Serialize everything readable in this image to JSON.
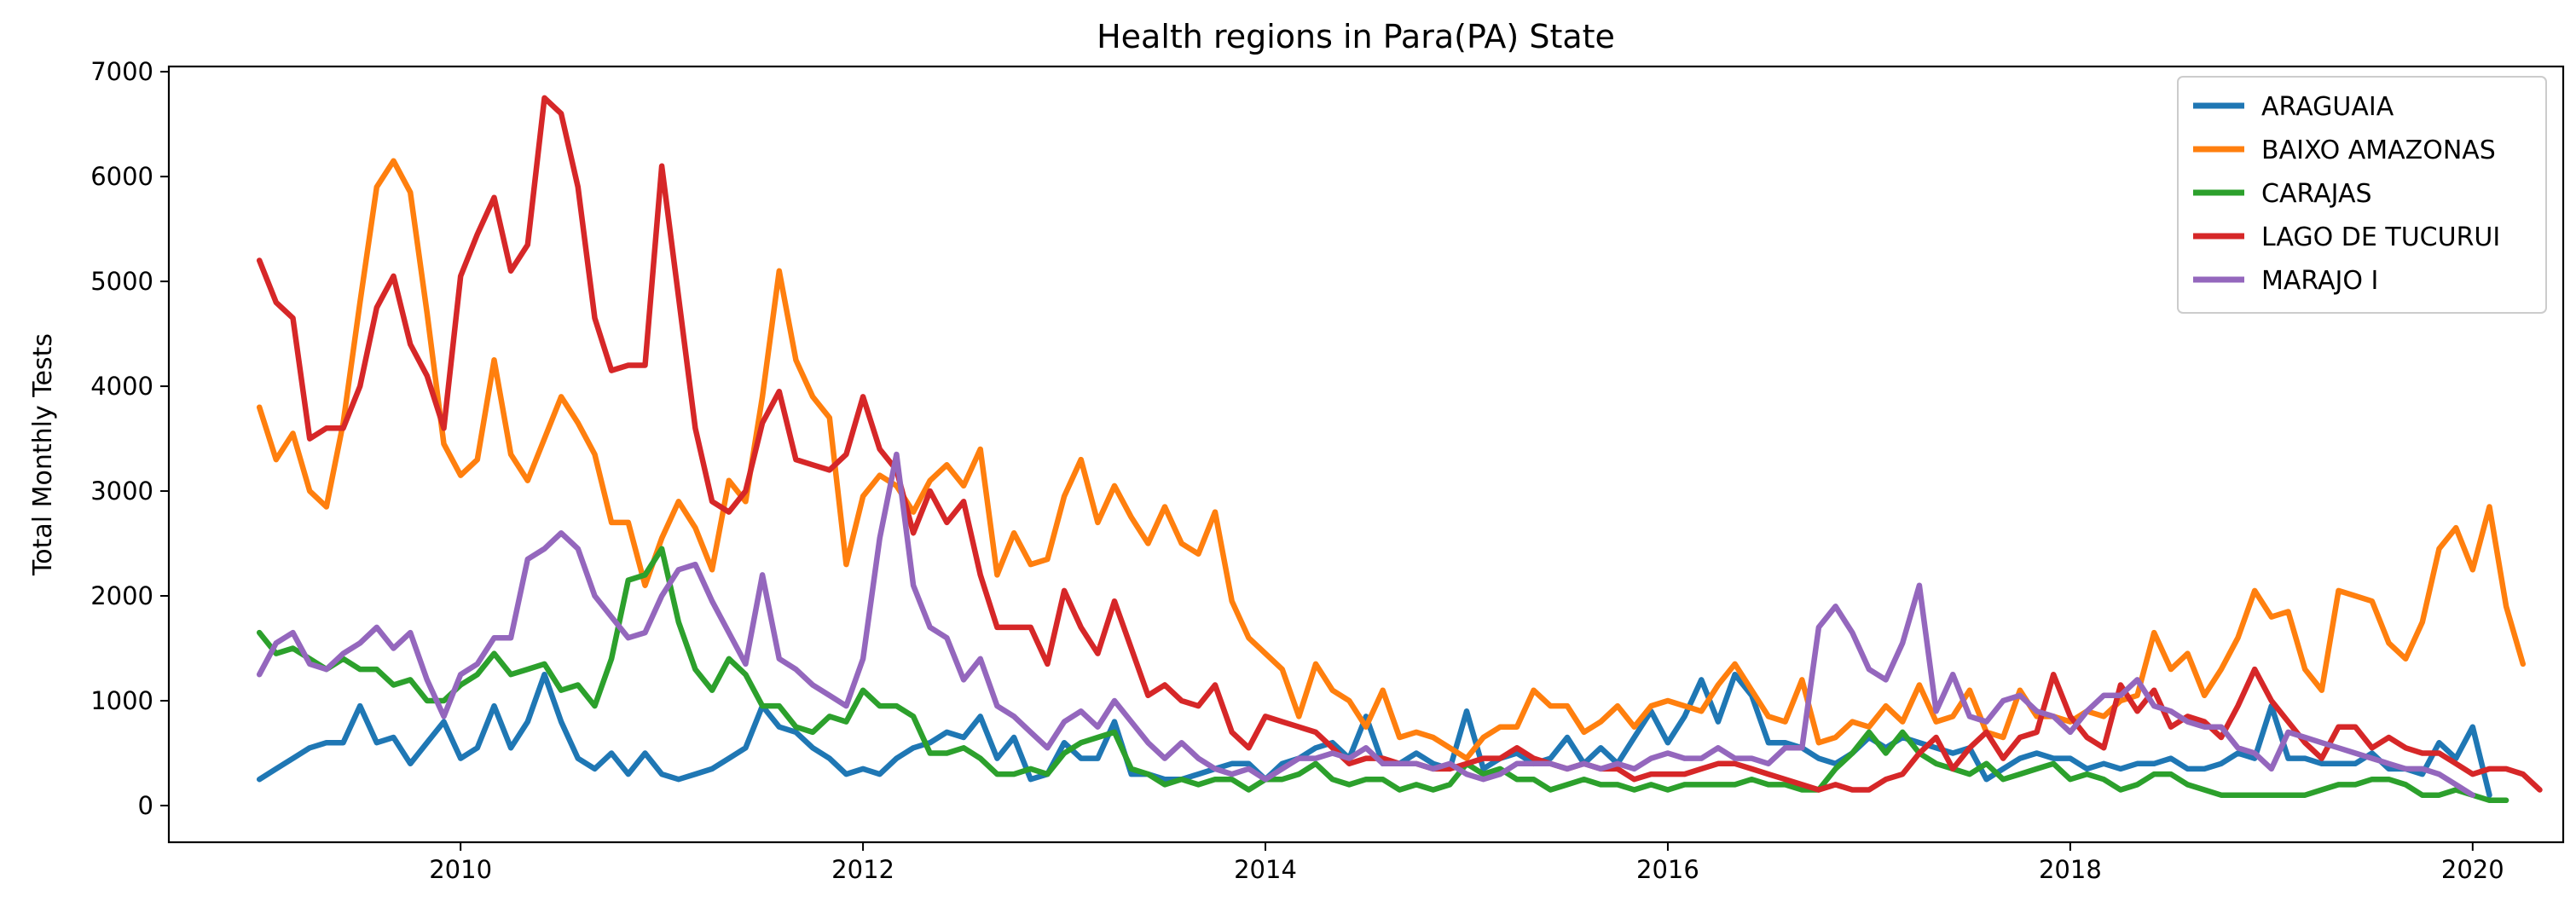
{
  "chart_data": {
    "type": "line",
    "title": "Health regions in  Para(PA) State",
    "xlabel": "",
    "ylabel": "Total Monthly Tests",
    "xlim": [
      2008.55,
      2020.45
    ],
    "ylim": [
      -350,
      7050
    ],
    "x_ticks": [
      2010,
      2012,
      2014,
      2016,
      2018,
      2020
    ],
    "x_tick_labels": [
      "2010",
      "2012",
      "2014",
      "2016",
      "2018",
      "2020"
    ],
    "y_ticks": [
      0,
      1000,
      2000,
      3000,
      4000,
      5000,
      6000,
      7000
    ],
    "y_tick_labels": [
      "0",
      "1000",
      "2000",
      "3000",
      "4000",
      "5000",
      "6000",
      "7000"
    ],
    "grid": false,
    "legend_position": "top-right",
    "x_start": 2009.0,
    "x_step_months": 1,
    "series": [
      {
        "name": "ARAGUAIA",
        "color": "#1f77b4",
        "values": [
          250,
          350,
          450,
          550,
          600,
          600,
          950,
          600,
          650,
          400,
          600,
          800,
          450,
          550,
          950,
          550,
          800,
          1250,
          800,
          450,
          350,
          500,
          300,
          500,
          300,
          250,
          300,
          350,
          450,
          550,
          950,
          750,
          700,
          550,
          450,
          300,
          350,
          300,
          450,
          550,
          600,
          700,
          650,
          850,
          450,
          650,
          250,
          300,
          600,
          450,
          450,
          800,
          300,
          300,
          250,
          250,
          300,
          350,
          400,
          400,
          250,
          400,
          450,
          550,
          600,
          450,
          850,
          400,
          400,
          500,
          400,
          350,
          900,
          350,
          450,
          500,
          400,
          450,
          650,
          400,
          550,
          400,
          650,
          900,
          600,
          850,
          1200,
          800,
          1250,
          1050,
          600,
          600,
          550,
          450,
          400,
          500,
          650,
          550,
          650,
          600,
          550,
          500,
          550,
          250,
          350,
          450,
          500,
          450,
          450,
          350,
          400,
          350,
          400,
          400,
          450,
          350,
          350,
          400,
          500,
          450,
          950,
          450,
          450,
          400,
          400,
          400,
          500,
          350,
          350,
          300,
          600,
          450,
          750,
          100
        ]
      },
      {
        "name": "BAIXO AMAZONAS",
        "color": "#ff7f0e",
        "values": [
          3800,
          3300,
          3550,
          3000,
          2850,
          3650,
          4800,
          5900,
          6150,
          5850,
          4700,
          3450,
          3150,
          3300,
          4250,
          3350,
          3100,
          3500,
          3900,
          3650,
          3350,
          2700,
          2700,
          2100,
          2550,
          2900,
          2650,
          2250,
          3100,
          2900,
          3900,
          5100,
          4250,
          3900,
          3700,
          2300,
          2950,
          3150,
          3050,
          2800,
          3100,
          3250,
          3050,
          3400,
          2200,
          2600,
          2300,
          2350,
          2950,
          3300,
          2700,
          3050,
          2750,
          2500,
          2850,
          2500,
          2400,
          2800,
          1950,
          1600,
          1450,
          1300,
          850,
          1350,
          1100,
          1000,
          750,
          1100,
          650,
          700,
          650,
          550,
          450,
          650,
          750,
          750,
          1100,
          950,
          950,
          700,
          800,
          950,
          750,
          950,
          1000,
          950,
          900,
          1150,
          1350,
          1100,
          850,
          800,
          1200,
          600,
          650,
          800,
          750,
          950,
          800,
          1150,
          800,
          850,
          1100,
          700,
          650,
          1100,
          850,
          850,
          800,
          900,
          850,
          1000,
          1050,
          1650,
          1300,
          1450,
          1050,
          1300,
          1600,
          2050,
          1800,
          1850,
          1300,
          1100,
          2050,
          2000,
          1950,
          1550,
          1400,
          1750,
          2450,
          2650,
          2250,
          2850,
          1900,
          1350
        ]
      },
      {
        "name": "CARAJAS",
        "color": "#2ca02c",
        "values": [
          1650,
          1450,
          1500,
          1400,
          1300,
          1400,
          1300,
          1300,
          1150,
          1200,
          1000,
          1000,
          1150,
          1250,
          1450,
          1250,
          1300,
          1350,
          1100,
          1150,
          950,
          1400,
          2150,
          2200,
          2450,
          1750,
          1300,
          1100,
          1400,
          1250,
          950,
          950,
          750,
          700,
          850,
          800,
          1100,
          950,
          950,
          850,
          500,
          500,
          550,
          450,
          300,
          300,
          350,
          300,
          500,
          600,
          650,
          700,
          350,
          300,
          200,
          250,
          200,
          250,
          250,
          150,
          250,
          250,
          300,
          400,
          250,
          200,
          250,
          250,
          150,
          200,
          150,
          200,
          400,
          300,
          350,
          250,
          250,
          150,
          200,
          250,
          200,
          200,
          150,
          200,
          150,
          200,
          200,
          200,
          200,
          250,
          200,
          200,
          150,
          150,
          350,
          500,
          700,
          500,
          700,
          500,
          400,
          350,
          300,
          400,
          250,
          300,
          350,
          400,
          250,
          300,
          250,
          150,
          200,
          300,
          300,
          200,
          150,
          100,
          100,
          100,
          100,
          100,
          100,
          150,
          200,
          200,
          250,
          250,
          200,
          100,
          100,
          150,
          100,
          50,
          50
        ]
      },
      {
        "name": "LAGO DE TUCURUI",
        "color": "#d62728",
        "values": [
          5200,
          4800,
          4650,
          3500,
          3600,
          3600,
          4000,
          4750,
          5050,
          4400,
          4100,
          3600,
          5050,
          5450,
          5800,
          5100,
          5350,
          6750,
          6600,
          5900,
          4650,
          4150,
          4200,
          4200,
          6100,
          4850,
          3600,
          2900,
          2800,
          3000,
          3650,
          3950,
          3300,
          3250,
          3200,
          3350,
          3900,
          3400,
          3200,
          2600,
          3000,
          2700,
          2900,
          2200,
          1700,
          1700,
          1700,
          1350,
          2050,
          1700,
          1450,
          1950,
          1500,
          1050,
          1150,
          1000,
          950,
          1150,
          700,
          550,
          850,
          800,
          750,
          700,
          550,
          400,
          450,
          450,
          400,
          400,
          350,
          350,
          400,
          450,
          450,
          550,
          450,
          400,
          350,
          400,
          350,
          350,
          250,
          300,
          300,
          300,
          350,
          400,
          400,
          350,
          300,
          250,
          200,
          150,
          200,
          150,
          150,
          250,
          300,
          500,
          650,
          350,
          550,
          700,
          450,
          650,
          700,
          1250,
          850,
          650,
          550,
          1150,
          900,
          1100,
          750,
          850,
          800,
          650,
          950,
          1300,
          1000,
          800,
          600,
          450,
          750,
          750,
          550,
          650,
          550,
          500,
          500,
          400,
          300,
          350,
          350,
          300,
          150
        ]
      },
      {
        "name": "MARAJO I",
        "color": "#9467bd",
        "values": [
          1250,
          1550,
          1650,
          1350,
          1300,
          1450,
          1550,
          1700,
          1500,
          1650,
          1200,
          850,
          1250,
          1350,
          1600,
          1600,
          2350,
          2450,
          2600,
          2450,
          2000,
          1800,
          1600,
          1650,
          2000,
          2250,
          2300,
          1950,
          1650,
          1350,
          2200,
          1400,
          1300,
          1150,
          1050,
          950,
          1400,
          2550,
          3350,
          2100,
          1700,
          1600,
          1200,
          1400,
          950,
          850,
          700,
          550,
          800,
          900,
          750,
          1000,
          800,
          600,
          450,
          600,
          450,
          350,
          300,
          350,
          250,
          350,
          450,
          450,
          500,
          450,
          550,
          400,
          400,
          400,
          350,
          400,
          300,
          250,
          300,
          400,
          400,
          400,
          350,
          400,
          350,
          400,
          350,
          450,
          500,
          450,
          450,
          550,
          450,
          450,
          400,
          550,
          550,
          1700,
          1900,
          1650,
          1300,
          1200,
          1550,
          2100,
          900,
          1250,
          850,
          800,
          1000,
          1050,
          900,
          850,
          700,
          900,
          1050,
          1050,
          1200,
          950,
          900,
          800,
          750,
          750,
          550,
          500,
          350,
          700,
          650,
          600,
          550,
          500,
          450,
          400,
          350,
          350,
          300,
          200,
          100
        ]
      }
    ]
  }
}
